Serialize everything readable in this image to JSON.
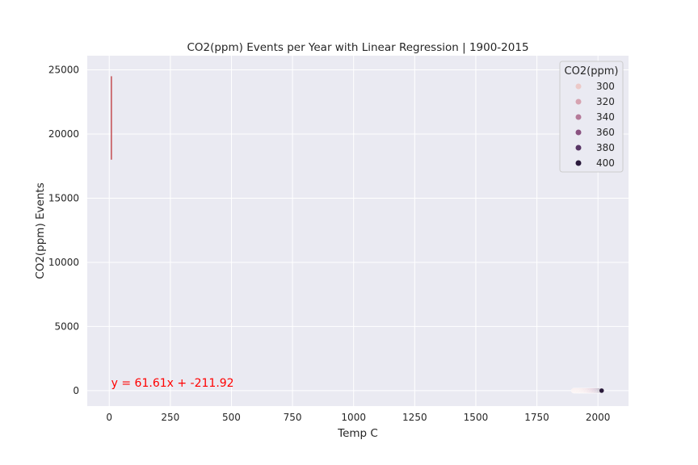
{
  "chart_data": {
    "type": "scatter",
    "title": "CO2(ppm) Events per Year with Linear Regression | 1900-2015",
    "xlabel": "Temp C",
    "ylabel": "CO2(ppm) Events",
    "xlim": [
      -90,
      2125
    ],
    "ylim": [
      -1200,
      26100
    ],
    "x_ticks": [
      0,
      250,
      500,
      750,
      1000,
      1250,
      1500,
      1750,
      2000
    ],
    "y_ticks": [
      0,
      5000,
      10000,
      15000,
      20000,
      25000
    ],
    "grid": true,
    "background": "#eaeaf2",
    "legend": {
      "title": "CO2(ppm)",
      "placement": "top-right",
      "entries": [
        {
          "label": "300",
          "color": "#ecc9c8"
        },
        {
          "label": "320",
          "color": "#d6a3b1"
        },
        {
          "label": "340",
          "color": "#b57a99"
        },
        {
          "label": "360",
          "color": "#8a5280"
        },
        {
          "label": "380",
          "color": "#583565"
        },
        {
          "label": "400",
          "color": "#2a1a3b"
        }
      ]
    },
    "points": {
      "x_start": 1900,
      "x_end": 2015,
      "y": 0,
      "co2_start": 296,
      "co2_end": 401
    },
    "regression_line": {
      "x": [
        8.8,
        8.8
      ],
      "y": [
        18000,
        24500
      ],
      "color": "#c44e52"
    },
    "annotation": {
      "text": "y = 61.61x + -211.92",
      "x": 8,
      "y": 300,
      "color": "#ff0000"
    }
  }
}
